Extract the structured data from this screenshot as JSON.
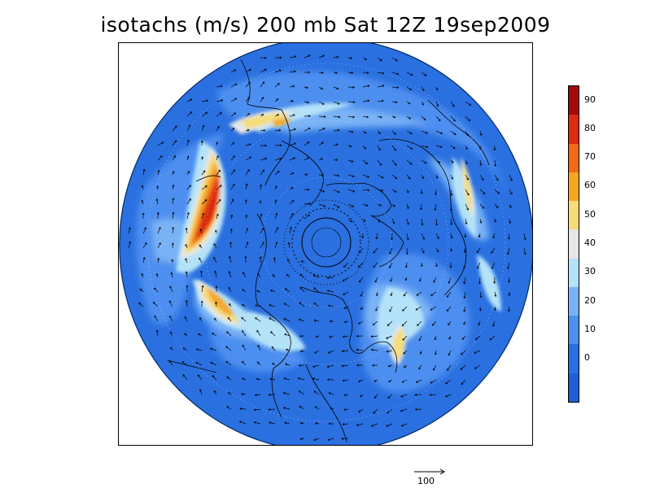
{
  "title": "isotachs (m/s) 200 mb Sat 12Z 19sep2009",
  "colorbar": {
    "levels": [
      {
        "label": "",
        "color": "#1f5fd6"
      },
      {
        "label": "0",
        "color": "#2a70e0"
      },
      {
        "label": "10",
        "color": "#4d8ff0"
      },
      {
        "label": "20",
        "color": "#7ab3f5"
      },
      {
        "label": "30",
        "color": "#b4e2f8"
      },
      {
        "label": "40",
        "color": "#e6e6e6"
      },
      {
        "label": "50",
        "color": "#f5dc78"
      },
      {
        "label": "60",
        "color": "#f5a623"
      },
      {
        "label": "70",
        "color": "#f06a1a"
      },
      {
        "label": "80",
        "color": "#d92c10"
      },
      {
        "label": "90",
        "color": "#a00a0a"
      }
    ]
  },
  "reference_vector": {
    "label": "100"
  }
}
